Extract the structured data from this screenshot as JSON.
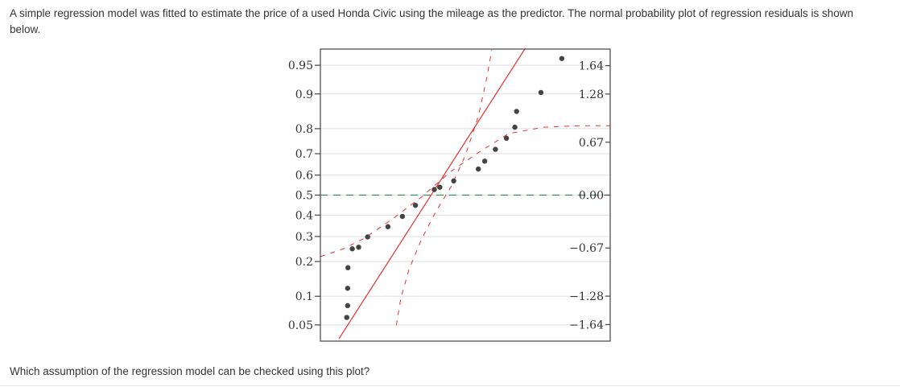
{
  "question": {
    "intro": "A simple regression model was fitted to estimate the price of a used Honda Civic using the mileage as the predictor. The normal probability plot of regression residuals is shown below.",
    "prompt": "Which assumption of the regression model can be checked using this plot?"
  },
  "chart_data": {
    "type": "scatter",
    "left_axis": {
      "tick_labels": [
        "0.95",
        "0.9",
        "0.8",
        "0.7",
        "0.6",
        "0.5",
        "0.4",
        "0.3",
        "0.2",
        "0.1",
        "0.05"
      ],
      "tick_values": [
        0.95,
        0.9,
        0.8,
        0.7,
        0.6,
        0.5,
        0.4,
        0.3,
        0.2,
        0.1,
        0.05
      ]
    },
    "right_axis": {
      "tick_labels": [
        "1.64",
        "1.28",
        "0.67",
        "0.00",
        "−0.67",
        "−1.28",
        "−1.64"
      ],
      "tick_values": [
        1.64,
        1.28,
        0.67,
        0.0,
        -0.67,
        -1.28,
        -1.64
      ]
    },
    "z_range": [
      -1.85,
      1.85
    ],
    "x_range": [
      0,
      1
    ],
    "points": [
      {
        "x": 0.091,
        "z": -1.55
      },
      {
        "x": 0.094,
        "z": -1.4
      },
      {
        "x": 0.094,
        "z": -1.18
      },
      {
        "x": 0.095,
        "z": -0.92
      },
      {
        "x": 0.11,
        "z": -0.68
      },
      {
        "x": 0.132,
        "z": -0.66
      },
      {
        "x": 0.163,
        "z": -0.53
      },
      {
        "x": 0.233,
        "z": -0.4
      },
      {
        "x": 0.283,
        "z": -0.27
      },
      {
        "x": 0.328,
        "z": -0.13
      },
      {
        "x": 0.393,
        "z": 0.07
      },
      {
        "x": 0.412,
        "z": 0.1
      },
      {
        "x": 0.46,
        "z": 0.18
      },
      {
        "x": 0.545,
        "z": 0.33
      },
      {
        "x": 0.567,
        "z": 0.43
      },
      {
        "x": 0.604,
        "z": 0.58
      },
      {
        "x": 0.642,
        "z": 0.72
      },
      {
        "x": 0.671,
        "z": 0.86
      },
      {
        "x": 0.677,
        "z": 1.06
      },
      {
        "x": 0.761,
        "z": 1.3
      },
      {
        "x": 0.833,
        "z": 1.73
      }
    ],
    "fit_line": {
      "x0": 0.064,
      "z0": -1.82,
      "x1": 0.707,
      "z1": 1.86
    },
    "confidence_band_left": [
      {
        "x": 0.262,
        "z": -1.65
      },
      {
        "x": 0.278,
        "z": -1.3
      },
      {
        "x": 0.305,
        "z": -0.95
      },
      {
        "x": 0.35,
        "z": -0.55
      },
      {
        "x": 0.4,
        "z": -0.2
      },
      {
        "x": 0.45,
        "z": 0.1
      },
      {
        "x": 0.5,
        "z": 0.5
      },
      {
        "x": 0.545,
        "z": 1.0
      },
      {
        "x": 0.575,
        "z": 1.5
      },
      {
        "x": 0.591,
        "z": 1.84
      }
    ],
    "confidence_band_right": [
      {
        "x": 0.0,
        "z": -0.78
      },
      {
        "x": 0.08,
        "z": -0.68
      },
      {
        "x": 0.15,
        "z": -0.55
      },
      {
        "x": 0.25,
        "z": -0.3
      },
      {
        "x": 0.35,
        "z": -0.02
      },
      {
        "x": 0.45,
        "z": 0.3
      },
      {
        "x": 0.55,
        "z": 0.55
      },
      {
        "x": 0.65,
        "z": 0.78
      },
      {
        "x": 0.77,
        "z": 0.86
      },
      {
        "x": 0.9,
        "z": 0.88
      },
      {
        "x": 1.0,
        "z": 0.88
      }
    ],
    "reference_line_z": 0.0,
    "grid": true,
    "colors": {
      "points": "#444444",
      "fit_line": "#e8302e",
      "band": "#e8302e",
      "reference": "#3a8a5c",
      "grid": "#dddddd",
      "axis": "#444444"
    }
  }
}
